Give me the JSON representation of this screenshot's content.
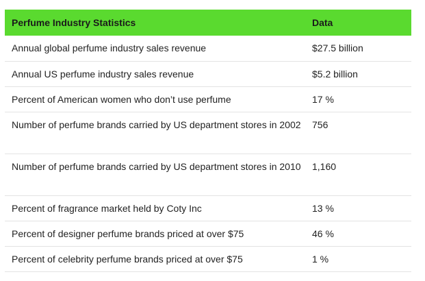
{
  "table": {
    "headers": [
      "Perfume Industry Statistics",
      "Data"
    ],
    "rows": [
      {
        "label": "Annual global perfume industry sales revenue",
        "value": "$27.5 billion"
      },
      {
        "label": "Annual US perfume industry sales revenue",
        "value": "$5.2 billion"
      },
      {
        "label": "Percent of American women who don’t use perfume",
        "value": "17 %"
      },
      {
        "label": "Number of perfume brands carried by US department stores in 2002",
        "value": "756"
      },
      {
        "label": "Number of perfume brands carried by US department stores in 2010",
        "value": "1,160"
      },
      {
        "label": "Percent of fragrance market held by Coty Inc",
        "value": "13 %"
      },
      {
        "label": "Percent of designer perfume brands priced at over $75",
        "value": "46 %"
      },
      {
        "label": "Percent of celebrity perfume brands priced at over $75",
        "value": "1 %"
      }
    ]
  },
  "colors": {
    "header_bg": "#5ada2f",
    "row_border": "#e3e3e3",
    "text": "#222222"
  }
}
